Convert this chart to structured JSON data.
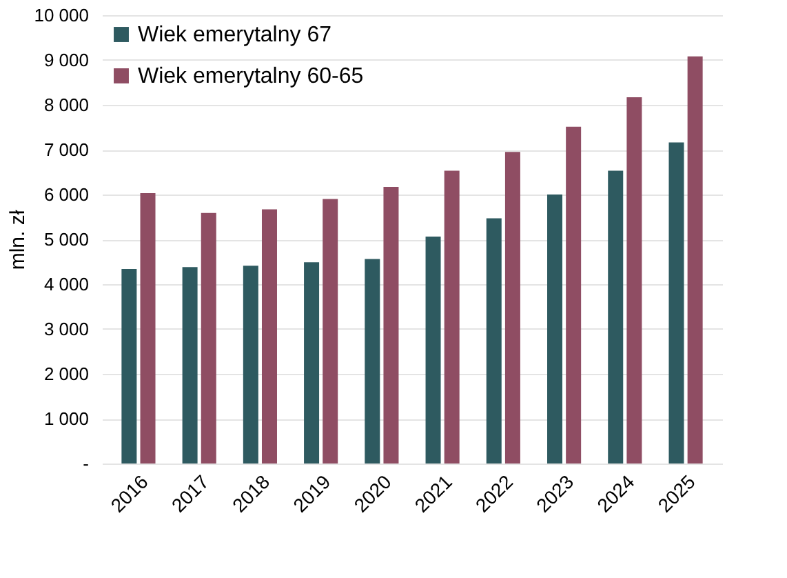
{
  "chart_data": {
    "type": "bar",
    "ylabel": "mln. zł",
    "categories": [
      "2016",
      "2017",
      "2018",
      "2019",
      "2020",
      "2021",
      "2022",
      "2023",
      "2024",
      "2025"
    ],
    "series": [
      {
        "name": "Wiek emerytalny 67",
        "color": "#2e5a60",
        "values": [
          4340,
          4380,
          4410,
          4490,
          4560,
          5060,
          5470,
          6000,
          6530,
          7160
        ]
      },
      {
        "name": "Wiek emerytalny 60-65",
        "color": "#8f4d63",
        "values": [
          6030,
          5590,
          5670,
          5900,
          6170,
          6530,
          6950,
          7510,
          8170,
          9080
        ]
      }
    ],
    "ylim": [
      0,
      10000
    ],
    "yticks": [
      {
        "value": 0,
        "label": "-"
      },
      {
        "value": 1000,
        "label": "1 000"
      },
      {
        "value": 2000,
        "label": "2 000"
      },
      {
        "value": 3000,
        "label": "3 000"
      },
      {
        "value": 4000,
        "label": "4 000"
      },
      {
        "value": 5000,
        "label": "5 000"
      },
      {
        "value": 6000,
        "label": "6 000"
      },
      {
        "value": 7000,
        "label": "7 000"
      },
      {
        "value": 8000,
        "label": "8 000"
      },
      {
        "value": 9000,
        "label": "9 000"
      },
      {
        "value": 10000,
        "label": "10 000"
      }
    ],
    "grid": "y",
    "legend": "top left"
  }
}
